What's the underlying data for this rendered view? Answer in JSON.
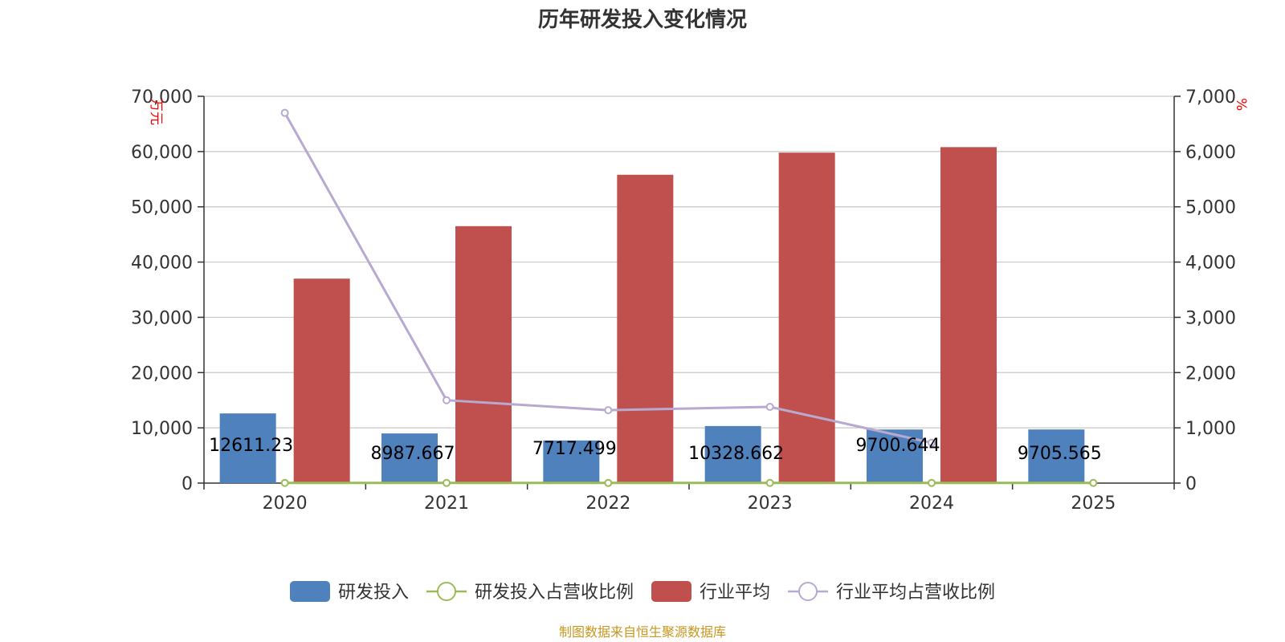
{
  "chart_data": {
    "type": "bar",
    "title": "历年研发投入变化情况",
    "categories": [
      "2020",
      "2021",
      "2022",
      "2023",
      "2024",
      "2025"
    ],
    "y_left": {
      "unit": "万元",
      "min": 0,
      "max": 70000,
      "ticks": [
        0,
        10000,
        20000,
        30000,
        40000,
        50000,
        60000,
        70000
      ],
      "tick_labels": [
        "0",
        "10,000",
        "20,000",
        "30,000",
        "40,000",
        "50,000",
        "60,000",
        "70,000"
      ]
    },
    "y_right": {
      "unit": "%",
      "min": 0,
      "max": 7000,
      "ticks": [
        0,
        1000,
        2000,
        3000,
        4000,
        5000,
        6000,
        7000
      ],
      "tick_labels": [
        "0",
        "1,000",
        "2,000",
        "3,000",
        "4,000",
        "5,000",
        "6,000",
        "7,000"
      ]
    },
    "grid": true,
    "legend_position": "bottom",
    "series": [
      {
        "name": "研发投入",
        "kind": "bar",
        "axis": "left",
        "color": "#4f81bd",
        "values": [
          12611.23,
          8987.667,
          7717.499,
          10328.662,
          9700.644,
          9705.565
        ],
        "labels": [
          "12611.23",
          "8987.667",
          "7717.499",
          "10328.662",
          "9700.644",
          "9705.565"
        ]
      },
      {
        "name": "研发投入占营收比例",
        "kind": "line",
        "axis": "right",
        "color": "#9bbb59",
        "values": [
          3.5,
          3.2,
          2.9,
          3.6,
          3.0,
          3.3
        ]
      },
      {
        "name": "行业平均",
        "kind": "bar",
        "axis": "left",
        "color": "#c0504d",
        "values": [
          37000,
          46500,
          55800,
          59800,
          60800,
          null
        ]
      },
      {
        "name": "行业平均占营收比例",
        "kind": "line",
        "axis": "right",
        "color": "#b7a9cf",
        "values": [
          6700,
          1500,
          1320,
          1380,
          730,
          null
        ]
      }
    ]
  },
  "source": "制图数据来自恒生聚源数据库"
}
